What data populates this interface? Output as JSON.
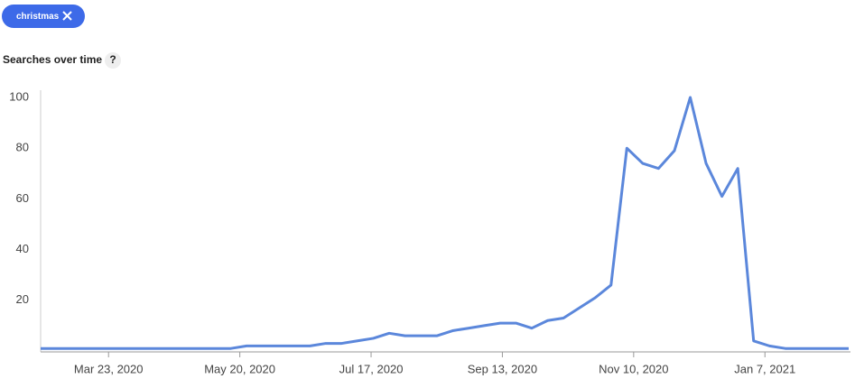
{
  "filter_chip": "christmas",
  "section_title": "Searches over time",
  "help_icon": "?",
  "chart_data": {
    "type": "line",
    "x": [
      "2020-02-22",
      "2020-02-29",
      "2020-03-07",
      "2020-03-14",
      "2020-03-21",
      "2020-03-28",
      "2020-04-04",
      "2020-04-11",
      "2020-04-18",
      "2020-04-25",
      "2020-05-02",
      "2020-05-09",
      "2020-05-16",
      "2020-05-23",
      "2020-05-30",
      "2020-06-06",
      "2020-06-13",
      "2020-06-20",
      "2020-06-27",
      "2020-07-04",
      "2020-07-11",
      "2020-07-18",
      "2020-07-25",
      "2020-08-01",
      "2020-08-08",
      "2020-08-15",
      "2020-08-22",
      "2020-08-29",
      "2020-09-05",
      "2020-09-12",
      "2020-09-19",
      "2020-09-26",
      "2020-10-03",
      "2020-10-10",
      "2020-10-17",
      "2020-10-24",
      "2020-10-31",
      "2020-11-07",
      "2020-11-14",
      "2020-11-21",
      "2020-11-28",
      "2020-12-05",
      "2020-12-12",
      "2020-12-19",
      "2020-12-26",
      "2021-01-02",
      "2021-01-09",
      "2021-01-16",
      "2021-01-23",
      "2021-01-30",
      "2021-02-06",
      "2021-02-13"
    ],
    "values": [
      1,
      1,
      1,
      1,
      1,
      1,
      1,
      1,
      1,
      1,
      1,
      1,
      1,
      2,
      2,
      2,
      2,
      2,
      3,
      3,
      4,
      5,
      7,
      6,
      6,
      6,
      8,
      9,
      10,
      11,
      11,
      9,
      12,
      13,
      17,
      21,
      26,
      80,
      74,
      72,
      79,
      100,
      74,
      61,
      72,
      4,
      2,
      1,
      1,
      1,
      1,
      1
    ],
    "color": "#5b87db",
    "xlim": [
      "2020-02-22",
      "2021-02-13"
    ],
    "xticks": [
      {
        "value": "2020-03-23",
        "label": "Mar 23, 2020"
      },
      {
        "value": "2020-05-20",
        "label": "May 20, 2020"
      },
      {
        "value": "2020-07-17",
        "label": "Jul 17, 2020"
      },
      {
        "value": "2020-09-13",
        "label": "Sep 13, 2020"
      },
      {
        "value": "2020-11-10",
        "label": "Nov 10, 2020"
      },
      {
        "value": "2021-01-07",
        "label": "Jan 7, 2021"
      }
    ],
    "ylim": [
      0,
      100
    ],
    "yticks": [
      20,
      40,
      60,
      80,
      100
    ]
  }
}
